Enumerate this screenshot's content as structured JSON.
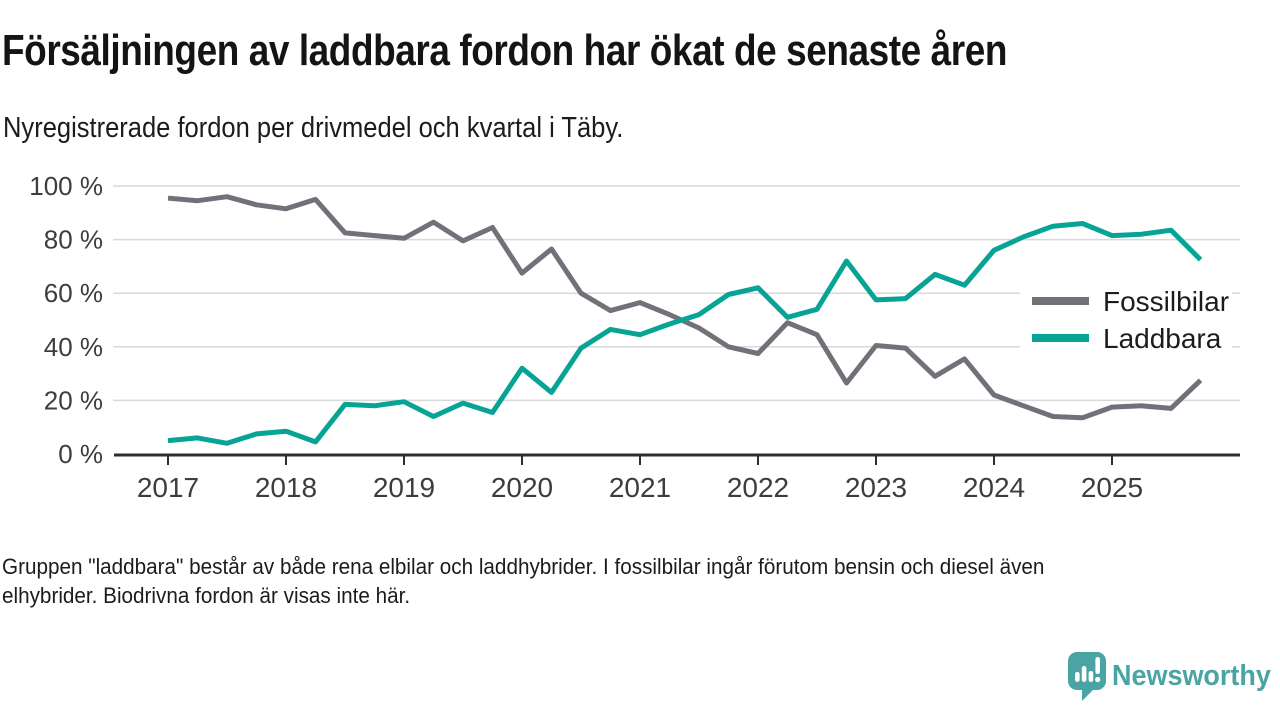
{
  "title": "Försäljningen av laddbara fordon har ökat de senaste åren",
  "subtitle": "Nyregistrerade fordon per drivmedel och kvartal i Täby.",
  "footnote": {
    "line1": "Gruppen \"laddbara\" består av både rena elbilar och laddhybrider. I fossilbilar ingår förutom bensin och diesel även",
    "line2": "elhybrider. Biodrivna fordon är visas inte här."
  },
  "brand": {
    "name": "Newsworthy",
    "color": "#4ba4a4"
  },
  "colors": {
    "fossil_line": "#74707a",
    "laddbara_line": "#07a496",
    "gridline": "#d9d9d9",
    "axis": "#2e2e2e",
    "tick_label": "#3d3d3d",
    "legend_text": "#1c1c1c"
  },
  "chart_data": {
    "type": "line",
    "title": "Försäljningen av laddbara fordon har ökat de senaste åren",
    "subtitle": "Nyregistrerade fordon per drivmedel och kvartal i Täby.",
    "x_period": "quarterly",
    "x_start": "2017 Q1",
    "x_end": "2025 Q4",
    "x_tick_labels": [
      "2017",
      "2018",
      "2019",
      "2020",
      "2021",
      "2022",
      "2023",
      "2024",
      "2025"
    ],
    "y_tick_labels": [
      "0 %",
      "20 %",
      "40 %",
      "60 %",
      "80 %",
      "100 %"
    ],
    "ylabel": "",
    "xlabel": "",
    "ylim": [
      0,
      100
    ],
    "grid": true,
    "legend_position": "inside-right",
    "series": [
      {
        "name": "Fossilbilar",
        "color": "#74707a",
        "values": [
          95.5,
          94.5,
          96,
          93,
          91.5,
          95,
          82.5,
          81.5,
          80.5,
          86.5,
          79.5,
          84.5,
          67.5,
          76.5,
          60,
          53.5,
          56.5,
          52,
          47,
          40,
          37.5,
          49,
          44.5,
          26.5,
          40.5,
          39.5,
          29,
          35.5,
          22,
          18,
          14,
          13.5,
          17.5,
          18,
          17,
          27.5
        ]
      },
      {
        "name": "Laddbara",
        "color": "#07a496",
        "values": [
          5,
          6,
          4,
          7.5,
          8.5,
          4.5,
          18.5,
          18,
          19.5,
          14,
          19,
          15.5,
          32,
          23,
          39.5,
          46.5,
          44.5,
          48.5,
          52,
          59.5,
          62,
          51,
          54,
          72,
          57.5,
          58,
          67,
          63,
          76,
          81,
          85,
          86,
          81.5,
          82,
          83.5,
          72.5
        ]
      }
    ]
  }
}
